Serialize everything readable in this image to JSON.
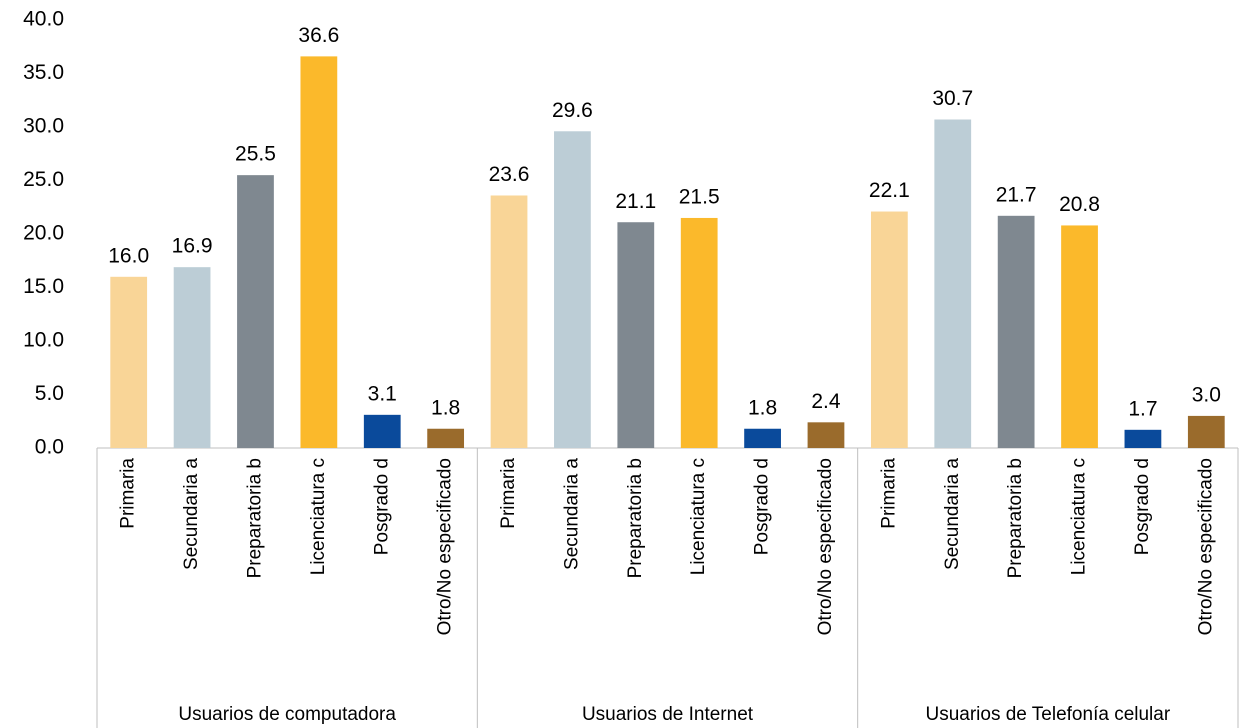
{
  "chart_data": {
    "type": "bar",
    "categories": [
      "Primaria",
      "Secundaria a",
      "Preparatoria b",
      "Licenciatura c",
      "Posgrado d",
      "Otro/No especificado"
    ],
    "colors": [
      "#f9d597",
      "#bccdd6",
      "#7f8890",
      "#fbb92b",
      "#0a4a9b",
      "#9a6b2c"
    ],
    "series": [
      {
        "name": "Usuarios de computadora",
        "values": [
          16.0,
          16.9,
          25.5,
          36.6,
          3.1,
          1.8
        ],
        "value_labels": [
          "16.0",
          "16.9",
          "25.5",
          "36.6",
          "3.1",
          "1.8"
        ]
      },
      {
        "name": "Usuarios de Internet",
        "values": [
          23.6,
          29.6,
          21.1,
          21.5,
          1.8,
          2.4
        ],
        "value_labels": [
          "23.6",
          "29.6",
          "21.1",
          "21.5",
          "1.8",
          "2.4"
        ]
      },
      {
        "name": "Usuarios de Telefonía celular",
        "values": [
          22.1,
          30.7,
          21.7,
          20.8,
          1.7,
          3.0
        ],
        "value_labels": [
          "22.1",
          "30.7",
          "21.7",
          "20.8",
          "1.7",
          "3.0"
        ]
      }
    ],
    "ylim": [
      0,
      40
    ],
    "yticks": [
      {
        "value": 0,
        "label": "0.0"
      },
      {
        "value": 5,
        "label": "5.0"
      },
      {
        "value": 10,
        "label": "10.0"
      },
      {
        "value": 15,
        "label": "15.0"
      },
      {
        "value": 20,
        "label": "20.0"
      },
      {
        "value": 25,
        "label": "25.0"
      },
      {
        "value": 30,
        "label": "30.0"
      },
      {
        "value": 35,
        "label": "35.0"
      },
      {
        "value": 40,
        "label": "40.0"
      }
    ],
    "grid": false
  }
}
